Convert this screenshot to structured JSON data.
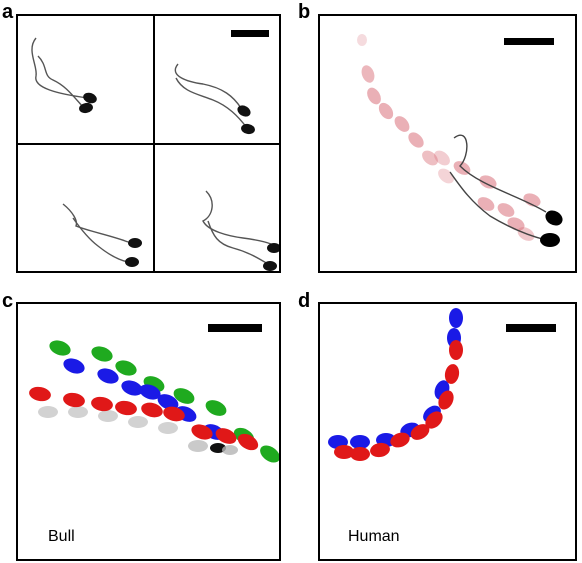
{
  "figure": {
    "panels": [
      {
        "label": "a"
      },
      {
        "label": "b"
      },
      {
        "label": "c",
        "species": "Bull"
      },
      {
        "label": "d",
        "species": "Human"
      }
    ],
    "colors": {
      "green": "#1faa1f",
      "blue": "#1a1ae6",
      "red": "#e01818",
      "grey": "#b4b4b4",
      "pink": "#d9707a",
      "ink": "#000000"
    }
  }
}
